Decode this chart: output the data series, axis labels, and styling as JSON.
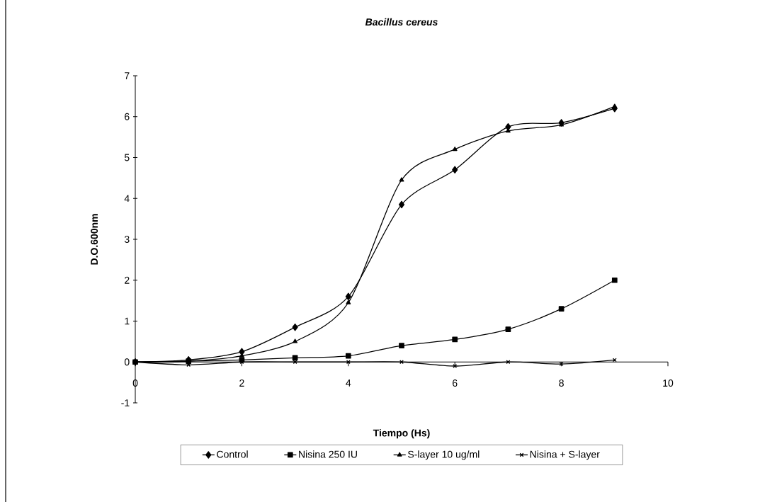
{
  "chart_data": {
    "type": "line",
    "title": "Bacillus cereus",
    "xlabel": "Tiempo (Hs)",
    "ylabel": "D.O.600nm",
    "x": [
      0,
      1,
      2,
      3,
      4,
      5,
      6,
      7,
      8,
      9
    ],
    "series": [
      {
        "name": "Control",
        "color": "#000000",
        "marker": "diamond",
        "values": [
          0,
          0.05,
          0.25,
          0.85,
          1.6,
          3.85,
          4.7,
          5.75,
          5.85,
          6.2
        ]
      },
      {
        "name": "Nisina 250 IU",
        "color": "#000000",
        "marker": "square",
        "values": [
          0,
          0.02,
          0.05,
          0.1,
          0.15,
          0.4,
          0.55,
          0.8,
          1.3,
          2.0
        ]
      },
      {
        "name": "S-layer 10 ug/ml",
        "color": "#000000",
        "marker": "triangle",
        "values": [
          0,
          0.02,
          0.15,
          0.5,
          1.45,
          4.45,
          5.2,
          5.65,
          5.8,
          6.25
        ]
      },
      {
        "name": "Nisina + S-layer",
        "color": "#000000",
        "marker": "cross",
        "values": [
          0,
          -0.07,
          0,
          0,
          0,
          0,
          -0.1,
          0,
          -0.05,
          0.05
        ]
      }
    ],
    "xlim": [
      0,
      10
    ],
    "ylim": [
      -1,
      7
    ],
    "xticks": [
      0,
      2,
      4,
      6,
      8,
      10
    ],
    "yticks": [
      -1,
      0,
      1,
      2,
      3,
      4,
      5,
      6,
      7
    ],
    "grid": false,
    "legend": "bottom",
    "line_style": "solid"
  }
}
